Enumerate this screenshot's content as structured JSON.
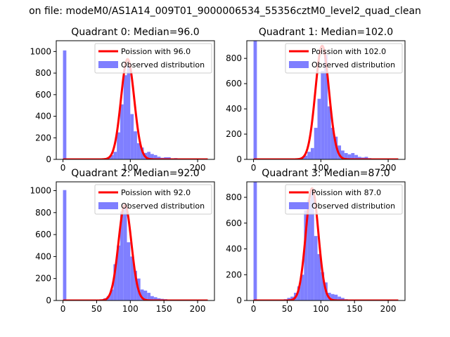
{
  "figure": {
    "suptitle": "on file: modeM0/AS1A14_009T01_9000006534_55356cztM0_level2_quad_clean"
  },
  "colors": {
    "histogram": "#7f7fff",
    "fit_line": "#ff0000",
    "axes": "#000000"
  },
  "chart_data": [
    {
      "type": "bar",
      "title": "Quadrant 0: Median=96.0",
      "median": 96.0,
      "xlim": [
        -10,
        225
      ],
      "ylim": [
        0,
        1100
      ],
      "xticks": [
        0,
        100,
        200
      ],
      "yticks": [
        0,
        200,
        400,
        600,
        800,
        1000
      ],
      "legend": {
        "position": "top-right",
        "entries": [
          "Poission with 96.0",
          "Observed distribution"
        ]
      },
      "bin_width": 5,
      "histogram": {
        "bin_starts": [
          0,
          55,
          60,
          65,
          70,
          75,
          80,
          85,
          90,
          95,
          100,
          105,
          110,
          115,
          120,
          125,
          130,
          135,
          140,
          145,
          150,
          155,
          160,
          165,
          170,
          175,
          180,
          185
        ],
        "counts": [
          1010,
          3,
          10,
          20,
          40,
          70,
          250,
          510,
          780,
          870,
          420,
          260,
          150,
          110,
          60,
          70,
          50,
          40,
          25,
          15,
          20,
          20,
          10,
          12,
          8,
          5,
          3,
          2
        ]
      },
      "fit": {
        "label": "Poission with 96.0",
        "mean": 96.0,
        "peak": 930,
        "sigma": 9.8,
        "x_range": [
          0,
          215
        ]
      }
    },
    {
      "type": "bar",
      "title": "Quadrant 1: Median=102.0",
      "median": 102.0,
      "xlim": [
        -10,
        225
      ],
      "ylim": [
        0,
        940
      ],
      "xticks": [
        0,
        100,
        200
      ],
      "yticks": [
        0,
        200,
        400,
        600,
        800
      ],
      "legend": {
        "position": "top-right",
        "entries": [
          "Poission with 102.0",
          "Observed distribution"
        ]
      },
      "bin_width": 5,
      "histogram": {
        "bin_starts": [
          0,
          65,
          70,
          75,
          80,
          85,
          90,
          95,
          100,
          105,
          110,
          115,
          120,
          125,
          130,
          135,
          140,
          145,
          150,
          155,
          160,
          165,
          170,
          175,
          180
        ],
        "counts": [
          940,
          5,
          15,
          30,
          60,
          90,
          250,
          480,
          700,
          830,
          420,
          250,
          180,
          110,
          70,
          50,
          40,
          50,
          35,
          20,
          15,
          20,
          10,
          5,
          3
        ]
      },
      "fit": {
        "label": "Poission with 102.0",
        "mean": 102.0,
        "peak": 900,
        "sigma": 10.1,
        "x_range": [
          0,
          215
        ]
      }
    },
    {
      "type": "bar",
      "title": "Quadrant 2: Median=92.0",
      "median": 92.0,
      "xlim": [
        -10,
        225
      ],
      "ylim": [
        0,
        1080
      ],
      "xticks": [
        0,
        50,
        100,
        150,
        200
      ],
      "yticks": [
        0,
        200,
        400,
        600,
        800,
        1000
      ],
      "legend": {
        "position": "top-right",
        "entries": [
          "Poission with 92.0",
          "Observed distribution"
        ]
      },
      "bin_width": 5,
      "histogram": {
        "bin_starts": [
          0,
          50,
          55,
          60,
          65,
          70,
          75,
          80,
          85,
          90,
          95,
          100,
          105,
          110,
          115,
          120,
          125,
          130,
          135,
          140,
          145,
          150,
          155,
          160
        ],
        "counts": [
          1005,
          5,
          10,
          20,
          40,
          100,
          330,
          500,
          810,
          840,
          530,
          400,
          270,
          200,
          100,
          90,
          70,
          40,
          30,
          20,
          15,
          12,
          8,
          5
        ]
      },
      "fit": {
        "label": "Poission with 92.0",
        "mean": 92.0,
        "peak": 870,
        "sigma": 9.6,
        "x_range": [
          0,
          215
        ]
      }
    },
    {
      "type": "bar",
      "title": "Quadrant 3: Median=87.0",
      "median": 87.0,
      "xlim": [
        -10,
        225
      ],
      "ylim": [
        0,
        920
      ],
      "xticks": [
        0,
        50,
        100,
        150,
        200
      ],
      "yticks": [
        0,
        200,
        400,
        600,
        800
      ],
      "legend": {
        "position": "top-right",
        "entries": [
          "Poission with 87.0",
          "Observed distribution"
        ]
      },
      "bin_width": 5,
      "histogram": {
        "bin_starts": [
          0,
          40,
          45,
          50,
          55,
          60,
          65,
          70,
          75,
          80,
          85,
          90,
          95,
          100,
          105,
          110,
          115,
          120,
          125,
          130,
          135,
          140,
          145,
          150
        ],
        "counts": [
          920,
          5,
          10,
          20,
          30,
          60,
          110,
          200,
          700,
          780,
          870,
          500,
          360,
          220,
          140,
          60,
          50,
          45,
          30,
          20,
          10,
          8,
          5,
          3
        ]
      },
      "fit": {
        "label": "Poission with 87.0",
        "mean": 87.0,
        "peak": 870,
        "sigma": 9.3,
        "x_range": [
          0,
          215
        ]
      }
    }
  ]
}
